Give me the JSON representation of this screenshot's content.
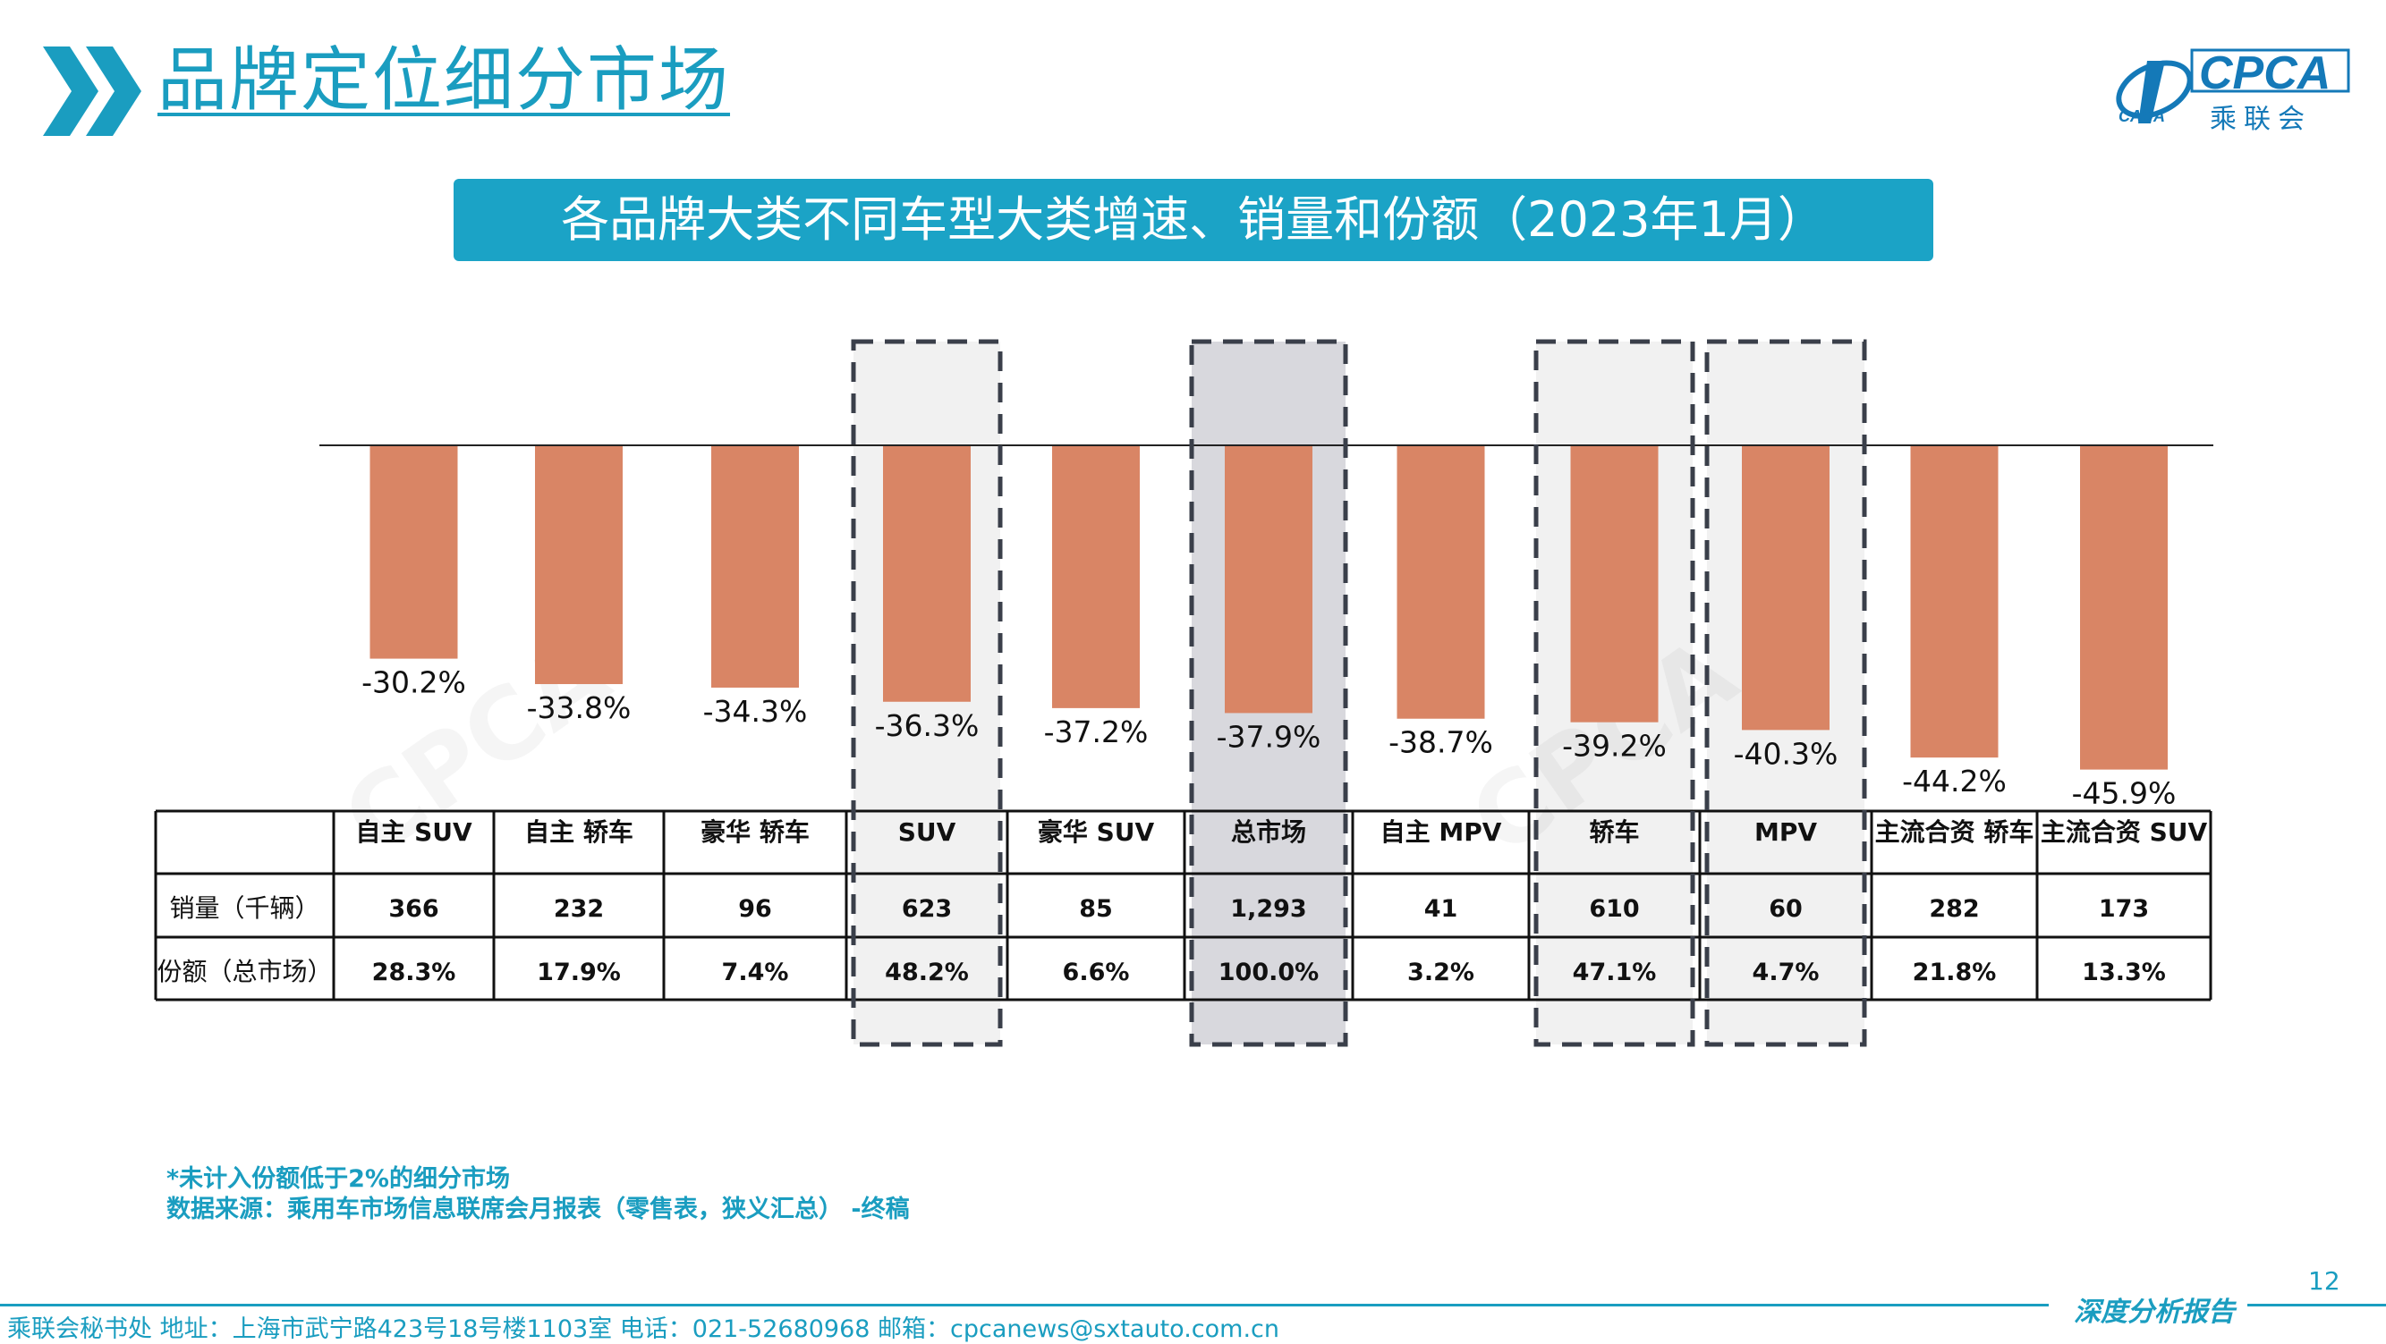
{
  "header": {
    "title": "品牌定位细分市场"
  },
  "logo": {
    "brand": "CPCA",
    "sub": "乘联会",
    "small": "CADA"
  },
  "banner": {
    "title": "各品牌大类不同车型大类增速、销量和份额（2023年1月）"
  },
  "chart_data": {
    "type": "bar",
    "categories": [
      "自主 SUV",
      "自主 轿车",
      "豪华 轿车",
      "SUV",
      "豪华 SUV",
      "总市场",
      "自主 MPV",
      "轿车",
      "MPV",
      "主流合资 轿车",
      "主流合资 SUV"
    ],
    "series": [
      {
        "values": [
          -30.2,
          -33.8,
          -34.3,
          -36.3,
          -37.2,
          -37.9,
          -38.7,
          -39.2,
          -40.3,
          -44.2,
          -45.9
        ]
      }
    ],
    "value_labels": [
      "-30.2%",
      "-33.8%",
      "-34.3%",
      "-36.3%",
      "-37.2%",
      "-37.9%",
      "-38.7%",
      "-39.2%",
      "-40.3%",
      "-44.2%",
      "-45.9%"
    ],
    "bar_color": "#d98565",
    "ylim": [
      -50,
      0
    ],
    "highlighted_categories": [
      "SUV",
      "总市场",
      "轿车",
      "MPV"
    ],
    "table": {
      "rows": [
        {
          "label": "销量（千辆）",
          "values": [
            "366",
            "232",
            "96",
            "623",
            "85",
            "1,293",
            "41",
            "610",
            "60",
            "282",
            "173"
          ]
        },
        {
          "label": "份额（总市场）",
          "values": [
            "28.3%",
            "17.9%",
            "7.4%",
            "48.2%",
            "6.6%",
            "100.0%",
            "3.2%",
            "47.1%",
            "4.7%",
            "21.8%",
            "13.3%"
          ]
        }
      ]
    }
  },
  "footnotes": {
    "note": "*未计入份额低于2%的细分市场",
    "source": "数据来源：乘用车市场信息联席会月报表（零售表，狭义汇总） -终稿"
  },
  "page_number": "12",
  "footer": {
    "contact": "乘联会秘书处  地址：上海市武宁路423号18号楼1103室  电话：021-52680968  邮箱：cpcanews@sxtauto.com.cn",
    "tag": "深度分析报告"
  }
}
